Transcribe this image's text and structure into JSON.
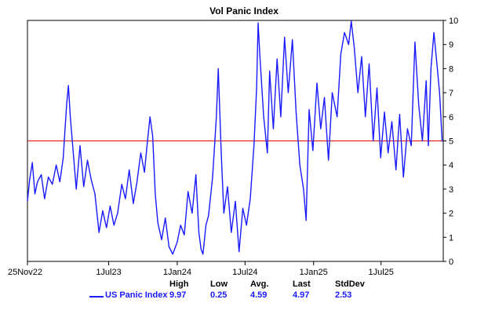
{
  "chart_data": {
    "type": "line",
    "title": "Vol Panic Index",
    "xlabel": "",
    "ylabel": "",
    "ylim": [
      0,
      10
    ],
    "y_ticks": [
      0,
      1,
      2,
      3,
      4,
      5,
      6,
      7,
      8,
      9,
      10
    ],
    "x_range": [
      "2022-11-25",
      "2025-12-15"
    ],
    "x_ticks": [
      {
        "date": "2022-11-25",
        "label": "25Nov22"
      },
      {
        "date": "2023-07-01",
        "label": "1Jul23"
      },
      {
        "date": "2024-01-01",
        "label": "1Jan24"
      },
      {
        "date": "2024-07-01",
        "label": "1Jul24"
      },
      {
        "date": "2025-01-01",
        "label": "1Jan25"
      },
      {
        "date": "2025-07-01",
        "label": "1Jul25"
      }
    ],
    "reference_line": {
      "value": 5,
      "color": "#e60000"
    },
    "grid": false,
    "legend_position": "bottom-left",
    "series": [
      {
        "name": "US Panic Index",
        "color": "#1a1aff",
        "points": [
          [
            "2022-11-25",
            2.5
          ],
          [
            "2022-12-01",
            3.4
          ],
          [
            "2022-12-08",
            4.1
          ],
          [
            "2022-12-15",
            2.8
          ],
          [
            "2022-12-22",
            3.3
          ],
          [
            "2023-01-01",
            3.6
          ],
          [
            "2023-01-10",
            2.6
          ],
          [
            "2023-01-20",
            3.5
          ],
          [
            "2023-01-31",
            3.2
          ],
          [
            "2023-02-10",
            4.0
          ],
          [
            "2023-02-20",
            3.3
          ],
          [
            "2023-03-01",
            4.3
          ],
          [
            "2023-03-10",
            6.5
          ],
          [
            "2023-03-15",
            7.3
          ],
          [
            "2023-03-20",
            6.0
          ],
          [
            "2023-03-28",
            4.5
          ],
          [
            "2023-04-05",
            3.0
          ],
          [
            "2023-04-15",
            4.8
          ],
          [
            "2023-04-25",
            3.1
          ],
          [
            "2023-05-05",
            4.2
          ],
          [
            "2023-05-15",
            3.4
          ],
          [
            "2023-05-25",
            2.8
          ],
          [
            "2023-06-05",
            1.2
          ],
          [
            "2023-06-15",
            2.1
          ],
          [
            "2023-06-25",
            1.4
          ],
          [
            "2023-07-05",
            2.3
          ],
          [
            "2023-07-15",
            1.5
          ],
          [
            "2023-07-25",
            2.0
          ],
          [
            "2023-08-05",
            3.2
          ],
          [
            "2023-08-15",
            2.6
          ],
          [
            "2023-08-25",
            3.8
          ],
          [
            "2023-09-05",
            2.4
          ],
          [
            "2023-09-15",
            3.3
          ],
          [
            "2023-09-25",
            4.5
          ],
          [
            "2023-10-05",
            3.7
          ],
          [
            "2023-10-12",
            4.8
          ],
          [
            "2023-10-20",
            6.0
          ],
          [
            "2023-10-27",
            5.2
          ],
          [
            "2023-11-03",
            2.8
          ],
          [
            "2023-11-10",
            1.6
          ],
          [
            "2023-11-20",
            0.9
          ],
          [
            "2023-11-30",
            1.8
          ],
          [
            "2023-12-10",
            0.6
          ],
          [
            "2023-12-20",
            0.3
          ],
          [
            "2024-01-01",
            0.8
          ],
          [
            "2024-01-10",
            1.5
          ],
          [
            "2024-01-20",
            1.1
          ],
          [
            "2024-01-30",
            2.9
          ],
          [
            "2024-02-10",
            2.0
          ],
          [
            "2024-02-20",
            3.6
          ],
          [
            "2024-02-28",
            1.2
          ],
          [
            "2024-03-05",
            0.5
          ],
          [
            "2024-03-10",
            0.3
          ],
          [
            "2024-03-18",
            1.5
          ],
          [
            "2024-03-25",
            1.9
          ],
          [
            "2024-04-05",
            3.5
          ],
          [
            "2024-04-15",
            6.0
          ],
          [
            "2024-04-20",
            8.0
          ],
          [
            "2024-04-28",
            4.5
          ],
          [
            "2024-05-05",
            2.0
          ],
          [
            "2024-05-15",
            3.1
          ],
          [
            "2024-05-25",
            1.2
          ],
          [
            "2024-06-05",
            2.5
          ],
          [
            "2024-06-15",
            0.4
          ],
          [
            "2024-06-25",
            2.2
          ],
          [
            "2024-07-05",
            1.5
          ],
          [
            "2024-07-15",
            2.6
          ],
          [
            "2024-07-25",
            4.8
          ],
          [
            "2024-08-01",
            7.2
          ],
          [
            "2024-08-05",
            9.9
          ],
          [
            "2024-08-10",
            8.5
          ],
          [
            "2024-08-20",
            6.0
          ],
          [
            "2024-08-30",
            4.5
          ],
          [
            "2024-09-05",
            7.9
          ],
          [
            "2024-09-15",
            5.5
          ],
          [
            "2024-09-25",
            8.4
          ],
          [
            "2024-10-05",
            6.0
          ],
          [
            "2024-10-15",
            9.3
          ],
          [
            "2024-10-25",
            7.0
          ],
          [
            "2024-11-05",
            9.2
          ],
          [
            "2024-11-15",
            6.2
          ],
          [
            "2024-11-25",
            4.0
          ],
          [
            "2024-12-05",
            3.0
          ],
          [
            "2024-12-12",
            1.7
          ],
          [
            "2024-12-20",
            6.3
          ],
          [
            "2024-12-30",
            4.6
          ],
          [
            "2025-01-10",
            7.4
          ],
          [
            "2025-01-20",
            5.5
          ],
          [
            "2025-01-30",
            6.8
          ],
          [
            "2025-02-10",
            4.2
          ],
          [
            "2025-02-20",
            7.0
          ],
          [
            "2025-03-05",
            6.0
          ],
          [
            "2025-03-15",
            8.6
          ],
          [
            "2025-03-25",
            9.5
          ],
          [
            "2025-04-05",
            9.0
          ],
          [
            "2025-04-12",
            9.97
          ],
          [
            "2025-04-20",
            8.9
          ],
          [
            "2025-04-30",
            7.0
          ],
          [
            "2025-05-10",
            8.5
          ],
          [
            "2025-05-20",
            6.0
          ],
          [
            "2025-05-30",
            8.2
          ],
          [
            "2025-06-10",
            5.0
          ],
          [
            "2025-06-20",
            7.2
          ],
          [
            "2025-06-30",
            4.3
          ],
          [
            "2025-07-10",
            6.2
          ],
          [
            "2025-07-20",
            4.5
          ],
          [
            "2025-07-30",
            5.8
          ],
          [
            "2025-08-10",
            3.8
          ],
          [
            "2025-08-20",
            6.1
          ],
          [
            "2025-08-30",
            3.5
          ],
          [
            "2025-09-10",
            5.5
          ],
          [
            "2025-09-20",
            4.8
          ],
          [
            "2025-09-30",
            9.1
          ],
          [
            "2025-10-10",
            6.5
          ],
          [
            "2025-10-20",
            5.0
          ],
          [
            "2025-10-30",
            7.5
          ],
          [
            "2025-11-05",
            4.8
          ],
          [
            "2025-11-12",
            8.0
          ],
          [
            "2025-11-20",
            9.5
          ],
          [
            "2025-11-28",
            8.2
          ],
          [
            "2025-12-05",
            7.0
          ],
          [
            "2025-12-12",
            4.97
          ]
        ]
      }
    ]
  },
  "stats": {
    "headers": [
      "High",
      "Low",
      "Avg.",
      "Last",
      "StdDev"
    ],
    "series_label": "US Panic Index",
    "values": [
      "9.97",
      "0.25",
      "4.59",
      "4.97",
      "2.53"
    ]
  }
}
